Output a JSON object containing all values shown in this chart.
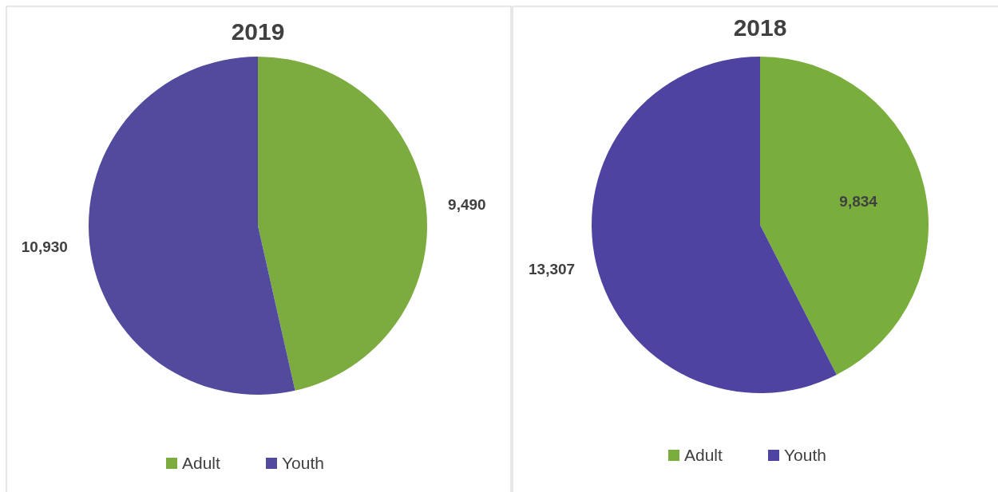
{
  "chart_data": [
    {
      "type": "pie",
      "title": "2019",
      "categories": [
        "Adult",
        "Youth"
      ],
      "values": [
        9490,
        10930
      ],
      "colors": [
        "#7cac3f",
        "#524a9d"
      ],
      "value_labels": [
        "9,490",
        "10,930"
      ],
      "legend": "bottom"
    },
    {
      "type": "pie",
      "title": "2018",
      "categories": [
        "Adult",
        "Youth"
      ],
      "values": [
        9834,
        13307
      ],
      "colors": [
        "#7aae3c",
        "#4e43a0"
      ],
      "value_labels": [
        "9,834",
        "13,307"
      ],
      "legend": "bottom"
    }
  ]
}
